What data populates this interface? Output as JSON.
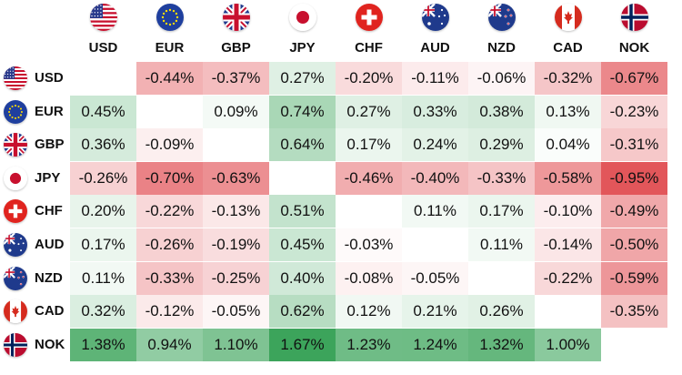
{
  "currencies": [
    "USD",
    "EUR",
    "GBP",
    "JPY",
    "CHF",
    "AUD",
    "NZD",
    "CAD",
    "NOK"
  ],
  "flags": {
    "USD": "us-flag-icon",
    "EUR": "eu-flag-icon",
    "GBP": "uk-flag-icon",
    "JPY": "japan-flag-icon",
    "CHF": "switzerland-flag-icon",
    "AUD": "australia-flag-icon",
    "NZD": "new-zealand-flag-icon",
    "CAD": "canada-flag-icon",
    "NOK": "norway-flag-icon"
  },
  "colors": {
    "positive": "#2e9e4f",
    "negative": "#e0474c",
    "neutral": "#ffffff"
  },
  "matrix": [
    [
      null,
      "-0.44%",
      "-0.37%",
      "0.27%",
      "-0.20%",
      "-0.11%",
      "-0.06%",
      "-0.32%",
      "-0.67%"
    ],
    [
      "0.45%",
      null,
      "0.09%",
      "0.74%",
      "0.27%",
      "0.33%",
      "0.38%",
      "0.13%",
      "-0.23%"
    ],
    [
      "0.36%",
      "-0.09%",
      null,
      "0.64%",
      "0.17%",
      "0.24%",
      "0.29%",
      "0.04%",
      "-0.31%"
    ],
    [
      "-0.26%",
      "-0.70%",
      "-0.63%",
      null,
      "-0.46%",
      "-0.40%",
      "-0.33%",
      "-0.58%",
      "-0.95%"
    ],
    [
      "0.20%",
      "-0.22%",
      "-0.13%",
      "0.51%",
      null,
      "0.11%",
      "0.17%",
      "-0.10%",
      "-0.49%"
    ],
    [
      "0.17%",
      "-0.26%",
      "-0.19%",
      "0.45%",
      "-0.03%",
      null,
      "0.11%",
      "-0.14%",
      "-0.50%"
    ],
    [
      "0.11%",
      "-0.33%",
      "-0.25%",
      "0.40%",
      "-0.08%",
      "-0.05%",
      null,
      "-0.22%",
      "-0.59%"
    ],
    [
      "0.32%",
      "-0.12%",
      "-0.05%",
      "0.62%",
      "0.12%",
      "0.21%",
      "0.26%",
      null,
      "-0.35%"
    ],
    [
      "1.38%",
      "0.94%",
      "1.10%",
      "1.67%",
      "1.23%",
      "1.24%",
      "1.32%",
      "1.00%",
      null
    ]
  ]
}
